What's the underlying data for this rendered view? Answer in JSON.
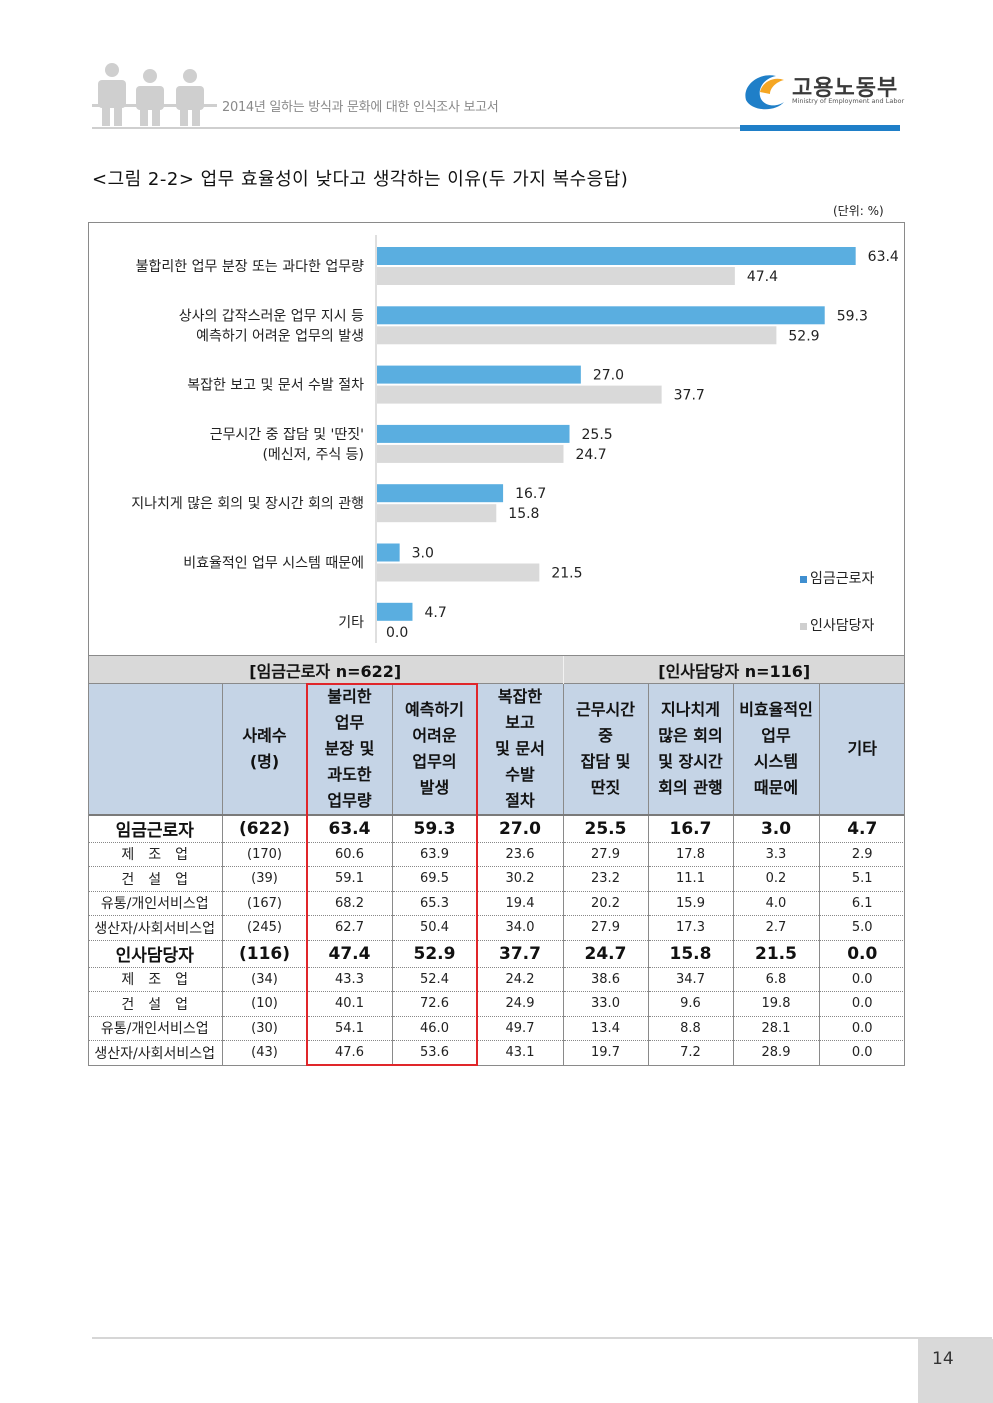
{
  "header": {
    "doc_title": "2014년 일하는 방식과 문화에 대한 인식조사 보고서",
    "logo_name": "고용노동부",
    "logo_sub": "Ministry of Employment and Labor",
    "brand_color": "#1f7fc8"
  },
  "figure": {
    "title": "<그림 2-2> 업무 효율성이 낮다고 생각하는 이유(두 가지 복수응답)",
    "unit": "(단위: %)"
  },
  "chart_data": {
    "type": "bar",
    "orientation": "horizontal",
    "categories": [
      "불합리한 업무 분장 또는 과다한 업무량",
      "상사의 갑작스러운 업무 지시 등\n예측하기 어려운 업무의 발생",
      "복잡한 보고 및 문서 수발 절차",
      "근무시간 중 잡담 및 '딴짓'\n(메신저, 주식 등)",
      "지나치게 많은 회의 및 장시간 회의 관행",
      "비효율적인 업무 시스템 때문에",
      "기타"
    ],
    "series": [
      {
        "name": "임금근로자",
        "color": "#5aaee0",
        "values": [
          63.4,
          59.3,
          27.0,
          25.5,
          16.7,
          3.0,
          4.7
        ],
        "labels": [
          "63.4",
          "59.3",
          "27.0",
          "25.5",
          "16.7",
          "3.0",
          "4.7"
        ]
      },
      {
        "name": "인사담당자",
        "color": "#d9d9d9",
        "values": [
          47.4,
          52.9,
          37.7,
          24.7,
          15.8,
          21.5,
          0.0
        ],
        "labels": [
          "47.4",
          "52.9",
          "37.7",
          "24.7",
          "15.8",
          "21.5",
          "0.0"
        ]
      }
    ],
    "legend_position": "bottom-right",
    "grid": false
  },
  "table": {
    "group_left": "[임금근로자 n=622]",
    "group_right": "[인사담당자 n=116]",
    "headers": [
      "",
      "사례수\n(명)",
      "불리한\n업무\n분장 및\n과도한\n업무량",
      "예측하기\n어려운\n업무의\n발생",
      "복잡한\n보고\n및 문서\n수발\n절차",
      "근무시간\n중\n잡담 및\n딴짓",
      "지나치게\n많은 회의\n및 장시간\n회의 관행",
      "비효율적인\n업무\n시스템\n때문에",
      "기타"
    ],
    "rows": [
      {
        "kind": "total",
        "cells": [
          "임금근로자",
          "(622)",
          "63.4",
          "59.3",
          "27.0",
          "25.5",
          "16.7",
          "3.0",
          "4.7"
        ]
      },
      {
        "kind": "sub",
        "cells": [
          "제　조　업",
          "(170)",
          "60.6",
          "63.9",
          "23.6",
          "27.9",
          "17.8",
          "3.3",
          "2.9"
        ]
      },
      {
        "kind": "sub",
        "cells": [
          "건　설　업",
          "(39)",
          "59.1",
          "69.5",
          "30.2",
          "23.2",
          "11.1",
          "0.2",
          "5.1"
        ]
      },
      {
        "kind": "sub",
        "cells": [
          "유통/개인서비스업",
          "(167)",
          "68.2",
          "65.3",
          "19.4",
          "20.2",
          "15.9",
          "4.0",
          "6.1"
        ]
      },
      {
        "kind": "sub",
        "cells": [
          "생산자/사회서비스업",
          "(245)",
          "62.7",
          "50.4",
          "34.0",
          "27.9",
          "17.3",
          "2.7",
          "5.0"
        ]
      },
      {
        "kind": "total",
        "cells": [
          "인사담당자",
          "(116)",
          "47.4",
          "52.9",
          "37.7",
          "24.7",
          "15.8",
          "21.5",
          "0.0"
        ]
      },
      {
        "kind": "sub",
        "cells": [
          "제　조　업",
          "(34)",
          "43.3",
          "52.4",
          "24.2",
          "38.6",
          "34.7",
          "6.8",
          "0.0"
        ]
      },
      {
        "kind": "sub",
        "cells": [
          "건　설　업",
          "(10)",
          "40.1",
          "72.6",
          "24.9",
          "33.0",
          "9.6",
          "19.8",
          "0.0"
        ]
      },
      {
        "kind": "sub",
        "cells": [
          "유통/개인서비스업",
          "(30)",
          "54.1",
          "46.0",
          "49.7",
          "13.4",
          "8.8",
          "28.1",
          "0.0"
        ]
      },
      {
        "kind": "sub",
        "cells": [
          "생산자/사회서비스업",
          "(43)",
          "47.6",
          "53.6",
          "43.1",
          "19.7",
          "7.2",
          "28.9",
          "0.0"
        ]
      }
    ],
    "highlight_color": "#e0262a"
  },
  "footer": {
    "page_number": "14"
  }
}
